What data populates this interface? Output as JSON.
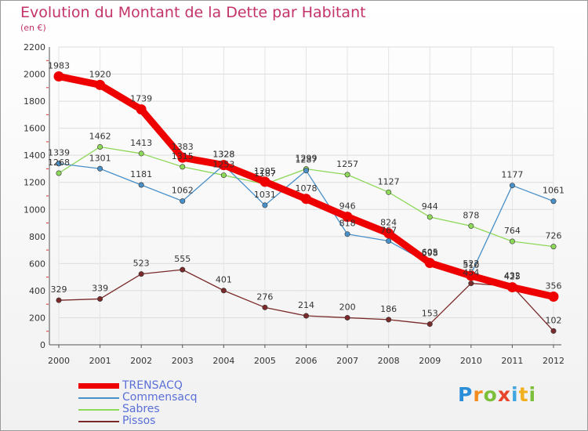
{
  "header": {
    "title": "Evolution du Montant de la Dette par Habitant",
    "unit": "(en €)"
  },
  "logo": {
    "text": "Proxiti",
    "colors": [
      "#2b8ed8",
      "#f28c1e",
      "#7cbf3a",
      "#e8452c",
      "#3fa6e0",
      "#f2b01e",
      "#7cbf3a"
    ]
  },
  "chart_data": {
    "type": "line",
    "title": "Evolution du Montant de la Dette par Habitant",
    "ylabel": "(en €)",
    "xlabel": "",
    "x": [
      "2000",
      "2001",
      "2002",
      "2003",
      "2004",
      "2005",
      "2006",
      "2007",
      "2008",
      "2009",
      "2010",
      "2011",
      "2012"
    ],
    "ylim": [
      0,
      2200
    ],
    "yticks": [
      0,
      200,
      400,
      600,
      800,
      1000,
      1200,
      1400,
      1600,
      1800,
      2000,
      2200
    ],
    "grid": true,
    "legend": "bottom-left",
    "series": [
      {
        "name": "TRENSACQ",
        "color": "#ee0000",
        "values": [
          1983,
          1920,
          1739,
          1383,
          1328,
          1205,
          1078,
          946,
          824,
          605,
          510,
          425,
          356
        ]
      },
      {
        "name": "Commensacq",
        "color": "#4a90c8",
        "values": [
          1339,
          1301,
          1181,
          1062,
          1328,
          1031,
          1287,
          818,
          767,
          598,
          522,
          1177,
          1061
        ]
      },
      {
        "name": "Sabres",
        "color": "#8ed85a",
        "values": [
          1268,
          1462,
          1413,
          1315,
          1253,
          1187,
          1299,
          1257,
          1127,
          944,
          878,
          764,
          726
        ]
      },
      {
        "name": "Pissos",
        "color": "#7a2a2a",
        "values": [
          329,
          339,
          523,
          555,
          401,
          276,
          214,
          200,
          186,
          153,
          454,
          432,
          102
        ]
      }
    ]
  }
}
